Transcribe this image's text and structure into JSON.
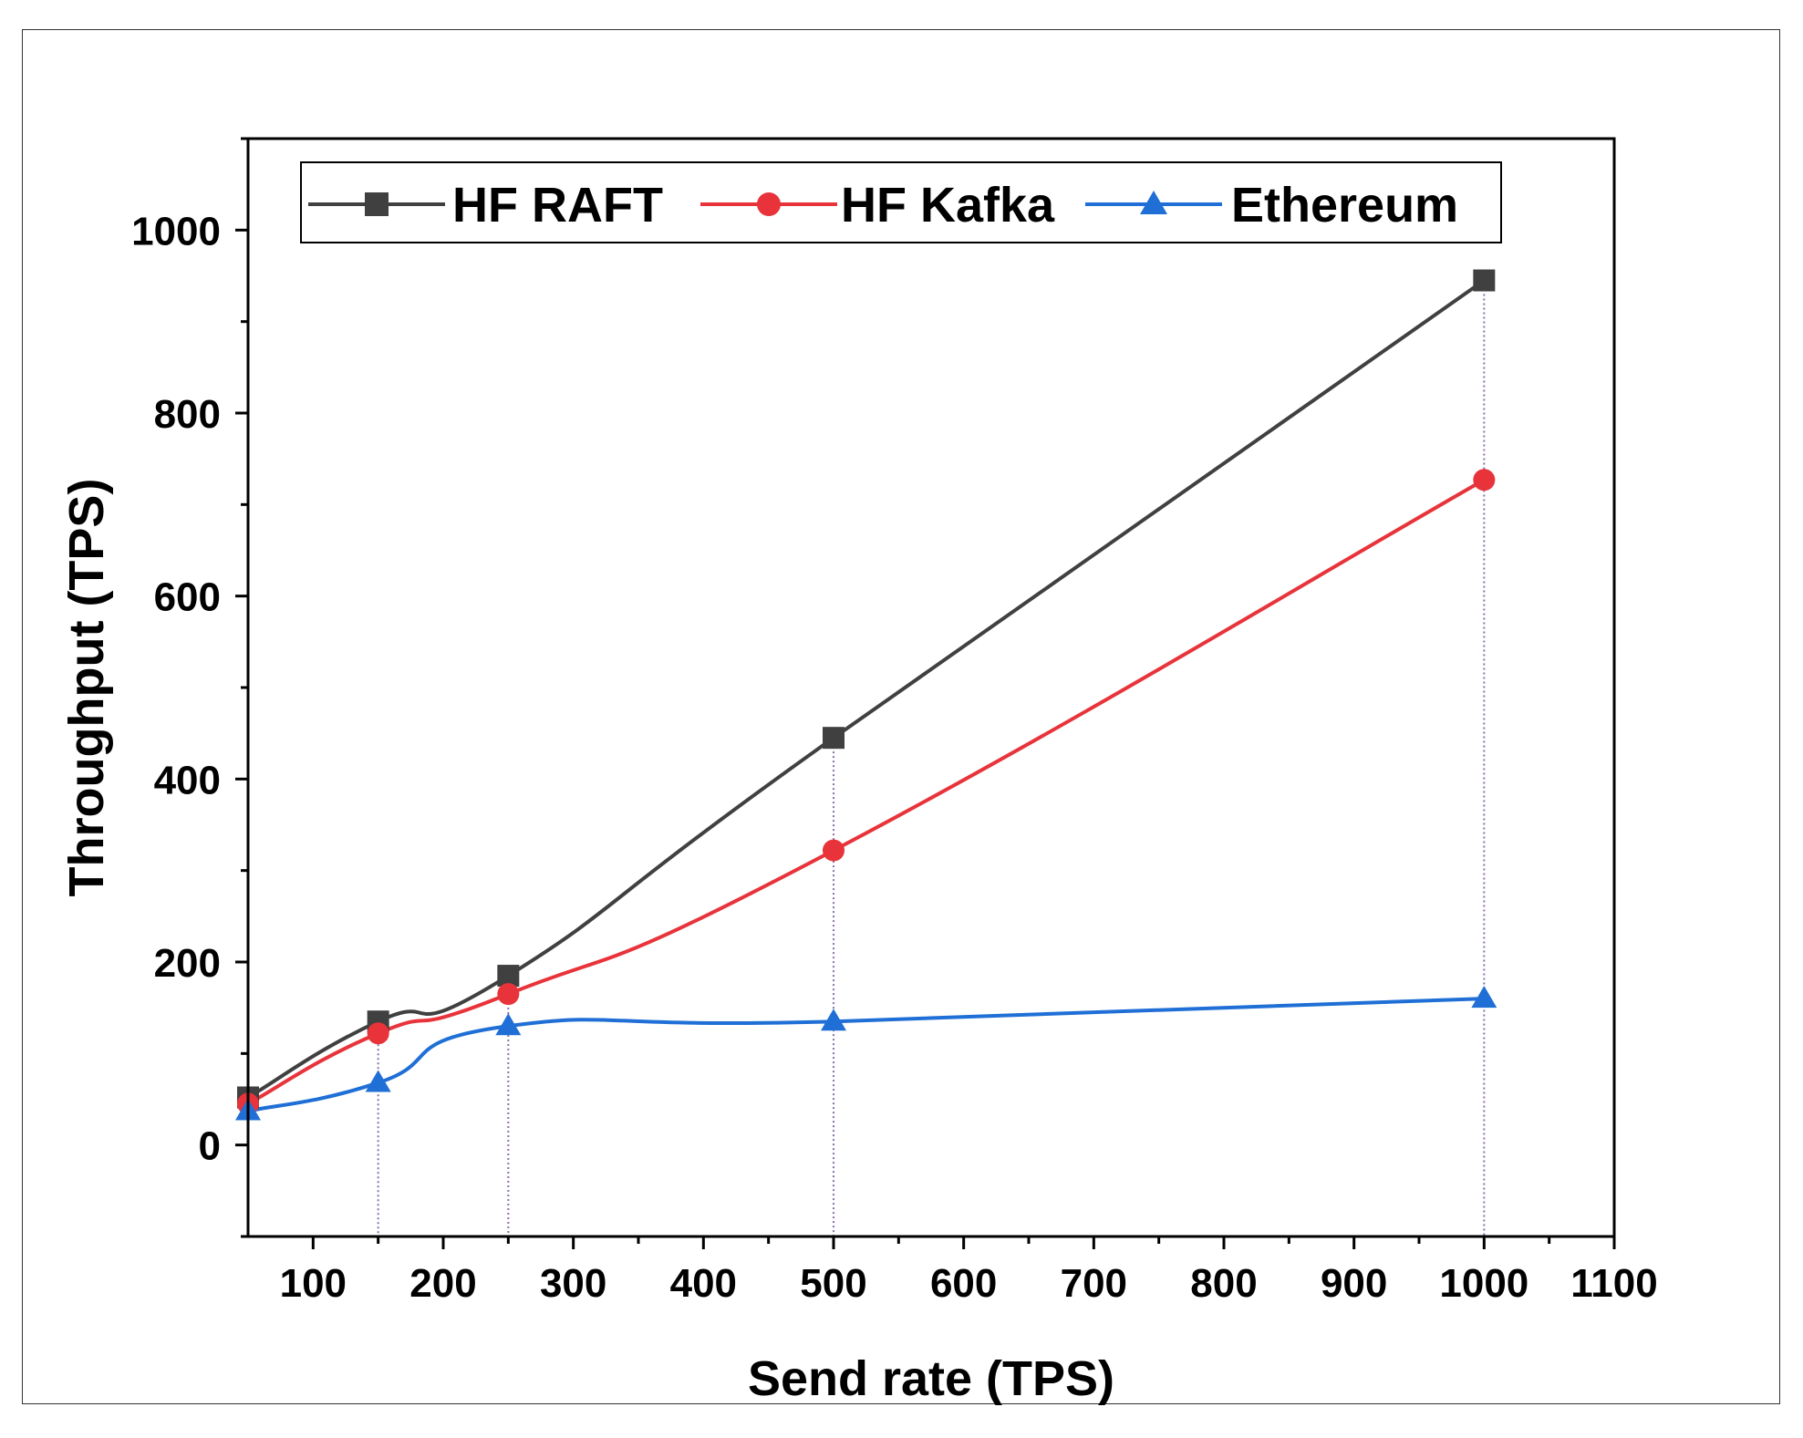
{
  "chart_data": {
    "type": "line",
    "title": "",
    "xlabel": "Send rate (TPS)",
    "ylabel": "Throughput (TPS)",
    "xlim": [
      50,
      1100
    ],
    "ylim": [
      -100,
      1100
    ],
    "xticks": [
      100,
      200,
      300,
      400,
      500,
      600,
      700,
      800,
      900,
      1000,
      1100
    ],
    "yticks": [
      0,
      200,
      400,
      600,
      800,
      1000
    ],
    "x": [
      50,
      150,
      250,
      500,
      1000
    ],
    "legend_position": "top",
    "series": [
      {
        "name": "HF RAFT",
        "color": "#404040",
        "marker": "square",
        "values": [
          52,
          135,
          185,
          445,
          945
        ]
      },
      {
        "name": "HF Kafka",
        "color": "#e8333a",
        "marker": "circle",
        "values": [
          45,
          122,
          165,
          322,
          727
        ]
      },
      {
        "name": "Ethereum",
        "color": "#1f6fd6",
        "marker": "triangle",
        "values": [
          37,
          68,
          130,
          135,
          160
        ]
      }
    ],
    "droplines": true
  }
}
